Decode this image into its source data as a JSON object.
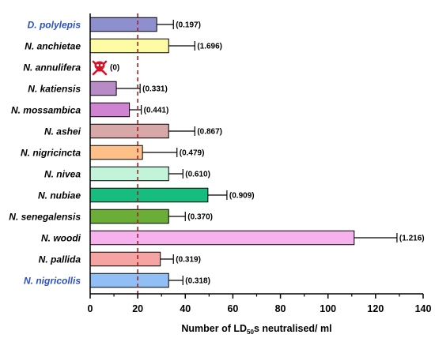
{
  "chart_data": {
    "type": "bar",
    "orientation": "horizontal",
    "categories": [
      "D. polylepis",
      "N. anchietae",
      "N. annulifera",
      "N. katiensis",
      "N. mossambica",
      "N. ashei",
      "N. nigricincta",
      "N. nivea",
      "N. nubiae",
      "N. senegalensis",
      "N. woodi",
      "N. pallida",
      "N. nigricollis"
    ],
    "category_colors": [
      "#2b4fc4",
      "#000000",
      "#000000",
      "#000000",
      "#000000",
      "#000000",
      "#000000",
      "#000000",
      "#000000",
      "#000000",
      "#000000",
      "#000000",
      "#2b4fc4"
    ],
    "values": [
      28,
      33,
      0,
      11,
      16.5,
      33,
      22,
      33,
      49.5,
      33,
      111,
      29.5,
      33
    ],
    "errors": [
      7,
      11,
      0,
      10,
      5,
      11,
      14.5,
      6,
      8,
      7,
      18,
      5.5,
      6
    ],
    "annotations": [
      "(0.197)",
      "(1.696)",
      "(0)",
      "(0.331)",
      "(0.441)",
      "(0.867)",
      "(0.479)",
      "(0.610)",
      "(0.909)",
      "(0.370)",
      "(1.216)",
      "(0.319)",
      "(0.318)"
    ],
    "bar_colors": [
      "#8e8fce",
      "#fdfba3",
      "#d4122a",
      "#b88ac6",
      "#d083d0",
      "#d8a8a8",
      "#fcc088",
      "#c1f4d8",
      "#17bd7e",
      "#6aae37",
      "#f6b2ec",
      "#f5a3a3",
      "#90bef5"
    ],
    "xlabel": "Number of LD50s neutralised/ ml",
    "xlim": [
      0,
      140
    ],
    "xticks": [
      "0",
      "20",
      "40",
      "60",
      "80",
      "100",
      "120",
      "140"
    ],
    "reference_line": 20,
    "reference_line_color": "#a02020",
    "grid": false,
    "legend": "none"
  }
}
